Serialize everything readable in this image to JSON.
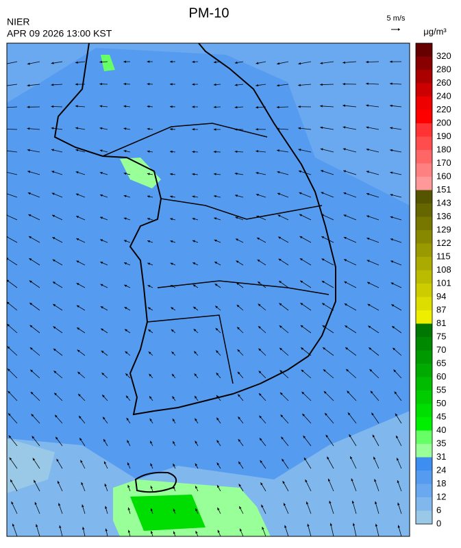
{
  "header": {
    "title": "PM-10",
    "agency": "NIER",
    "datetime": "APR 09 2026 13:00 KST",
    "wind_scale": "5 m/s"
  },
  "colorbar": {
    "unit": "μg/m³",
    "labels": [
      0,
      6,
      12,
      18,
      24,
      31,
      35,
      40,
      45,
      50,
      55,
      60,
      65,
      70,
      75,
      81,
      87,
      94,
      101,
      108,
      115,
      122,
      129,
      136,
      143,
      151,
      160,
      170,
      180,
      190,
      200,
      220,
      240,
      260,
      280,
      320
    ],
    "colors": [
      "#99c9e6",
      "#80b8ee",
      "#6aa8f0",
      "#559cf0",
      "#3d8ef0",
      "#99ff99",
      "#66ff66",
      "#00ee00",
      "#00dd00",
      "#00cc00",
      "#00bb00",
      "#00aa00",
      "#009900",
      "#008800",
      "#007700",
      "#eeee00",
      "#dddd00",
      "#cccc00",
      "#bbbb00",
      "#aaaa00",
      "#999900",
      "#888800",
      "#777700",
      "#666600",
      "#555500",
      "#ff9999",
      "#ff8080",
      "#ff6666",
      "#ff4d4d",
      "#ff3333",
      "#ff0000",
      "#ee0000",
      "#cc0000",
      "#aa0000",
      "#880000",
      "#660000"
    ]
  }
}
